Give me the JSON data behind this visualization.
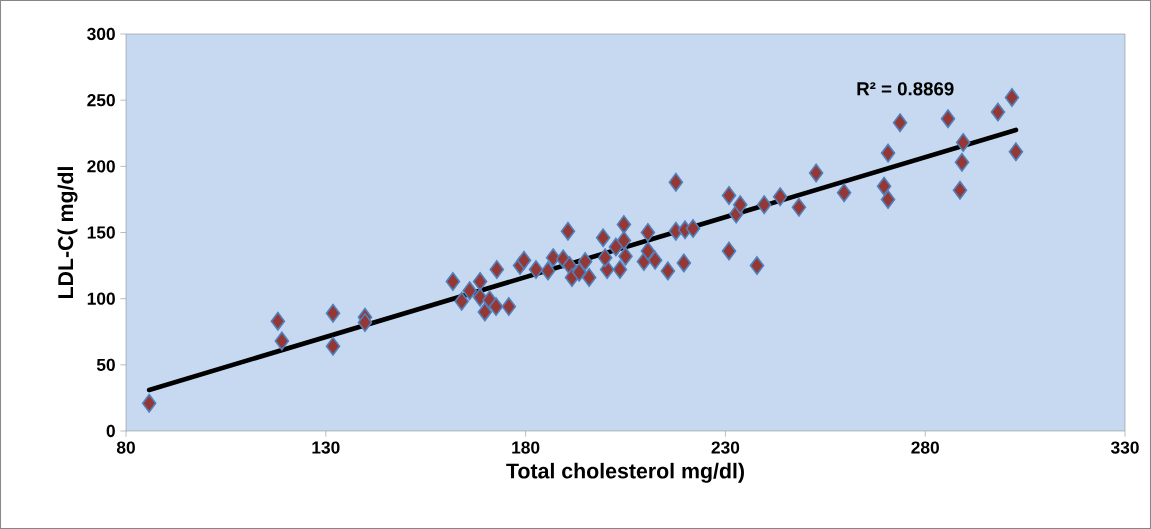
{
  "chart_data": {
    "type": "scatter",
    "xlabel": "Total cholesterol mg/dl)",
    "ylabel": "LDL-C( mg/dl",
    "xlim": [
      80,
      330
    ],
    "ylim": [
      0,
      300
    ],
    "xticks": [
      80,
      130,
      180,
      230,
      280,
      330
    ],
    "yticks": [
      0,
      50,
      100,
      150,
      200,
      250,
      300
    ],
    "grid": false,
    "marker": "diamond",
    "series": [
      {
        "color": "#953735",
        "x": [
          85.8,
          118,
          119,
          131.8,
          131.8,
          139.8,
          139.8,
          161.8,
          164,
          166,
          168.6,
          168.6,
          169.8,
          171,
          172.6,
          172.8,
          175.8,
          178.6,
          179.6,
          182.6,
          185.6,
          186.9,
          189.4,
          190.6,
          191,
          191.6,
          193.4,
          194.9,
          195.9,
          199.4,
          200.4,
          199.9,
          202.6,
          203.6,
          204.6,
          204.6,
          205,
          209.6,
          210.6,
          210.6,
          212.4,
          215.6,
          217.6,
          217.6,
          219.6,
          219.9,
          221.9,
          230.9,
          230.9,
          232.7,
          233.7,
          237.9,
          239.7,
          243.7,
          248.4,
          252.7,
          259.7,
          269.7,
          270.7,
          270.7,
          273.7,
          285.7,
          288.7,
          289.5,
          289.2,
          298.2,
          301.7,
          302.7
        ],
        "values": [
          21,
          83,
          68,
          89,
          64,
          86,
          82,
          113,
          98,
          106,
          113,
          101,
          90,
          99,
          94,
          122,
          94,
          125,
          129,
          122,
          121,
          131,
          130,
          151,
          125,
          116,
          120,
          128,
          116,
          146,
          122,
          131,
          139,
          122,
          156,
          144,
          132,
          128,
          150,
          136,
          129,
          121,
          188,
          151,
          127,
          152,
          153,
          178,
          136,
          164,
          171,
          125,
          171,
          177,
          169,
          195,
          180,
          185,
          210,
          175,
          233,
          236,
          182,
          218,
          203,
          241,
          252,
          211
        ]
      },
      {
        "type": "line",
        "color": "#000000",
        "marker": "none",
        "x": [
          85.8,
          302.7
        ],
        "values": [
          31,
          227.5
        ]
      }
    ],
    "annotations": [
      "R² = 0.8869"
    ]
  }
}
